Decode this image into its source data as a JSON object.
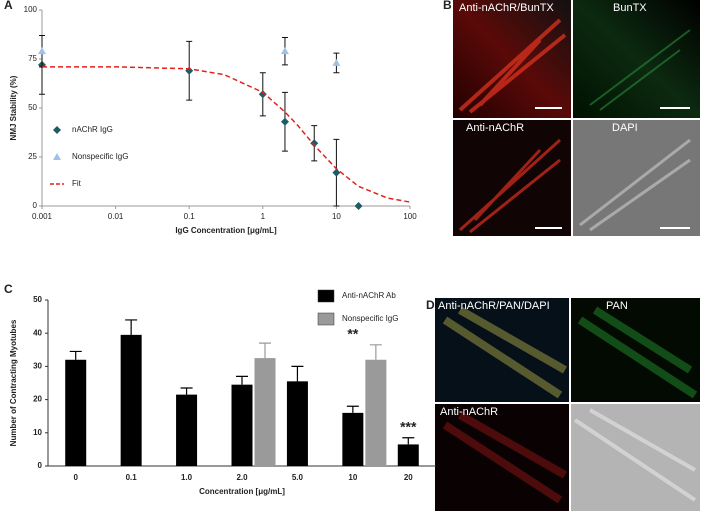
{
  "chart_data": [
    {
      "type": "scatter",
      "panel": "A",
      "xlabel": "IgG Concentration [μg/mL]",
      "ylabel": "NMJ Stability (%)",
      "xscale": "log",
      "xlim": [
        0.001,
        100
      ],
      "xticks": [
        0.001,
        0.01,
        0.1,
        1,
        10,
        100
      ],
      "ylim": [
        0,
        100
      ],
      "yticks": [
        0,
        25,
        50,
        75,
        100
      ],
      "legend": "left",
      "series": [
        {
          "name": "nAChR IgG",
          "color": "#1d5b66",
          "mark": "diamond",
          "x": [
            0.001,
            0.1,
            1,
            2,
            5,
            10,
            20
          ],
          "values": [
            72,
            69,
            57,
            43,
            32,
            17,
            0
          ],
          "errors": [
            15,
            15,
            11,
            15,
            9,
            17,
            0
          ]
        },
        {
          "name": "Nonspecific IgG",
          "color": "#9fc3e6",
          "mark": "triangle",
          "x": [
            0.001,
            2,
            10
          ],
          "values": [
            79,
            79,
            73
          ],
          "errors": [
            8,
            7,
            5
          ]
        },
        {
          "name": "Fit",
          "color": "#e0221c",
          "mark": "dashed-line",
          "x": [
            0.001,
            0.01,
            0.1,
            0.3,
            1,
            2,
            3,
            5,
            10,
            20,
            50,
            100
          ],
          "values": [
            71,
            71,
            70,
            67,
            58,
            48,
            41,
            31,
            19,
            10,
            4,
            2
          ]
        }
      ]
    },
    {
      "type": "bar",
      "panel": "C",
      "xlabel": "Concentration [μg/mL]",
      "ylabel": "Number of Contracting Myotubes",
      "categories": [
        "0",
        "0.1",
        "1.0",
        "2.0",
        "5.0",
        "10",
        "20"
      ],
      "ylim": [
        0,
        50
      ],
      "yticks": [
        0,
        10,
        20,
        30,
        40,
        50
      ],
      "legend": "upper right",
      "series": [
        {
          "name": "Anti-nAChR Ab",
          "color": "#000000",
          "values": [
            32,
            39.5,
            21.5,
            24.5,
            25.5,
            16,
            6.5
          ],
          "errors": [
            2.5,
            4.5,
            2,
            2.5,
            4.5,
            2,
            2
          ]
        },
        {
          "name": "Nonspecific IgG",
          "color": "#9a9a9a",
          "values": [
            null,
            null,
            null,
            32.5,
            null,
            32,
            null
          ],
          "errors": [
            null,
            null,
            null,
            4.5,
            null,
            4.5,
            null
          ]
        }
      ],
      "annotations": [
        {
          "text": "**",
          "x": "10"
        },
        {
          "text": "***",
          "x": "20"
        }
      ]
    }
  ],
  "images": [
    {
      "panel": "B",
      "captions": [
        "Anti-nAChR/BunTX",
        "BunTX",
        "Anti-nAChR",
        "DAPI"
      ]
    },
    {
      "panel": "D",
      "captions": [
        "Anti-nAChR/PAN/DAPI",
        "PAN",
        "Anti-nAChR"
      ]
    }
  ]
}
